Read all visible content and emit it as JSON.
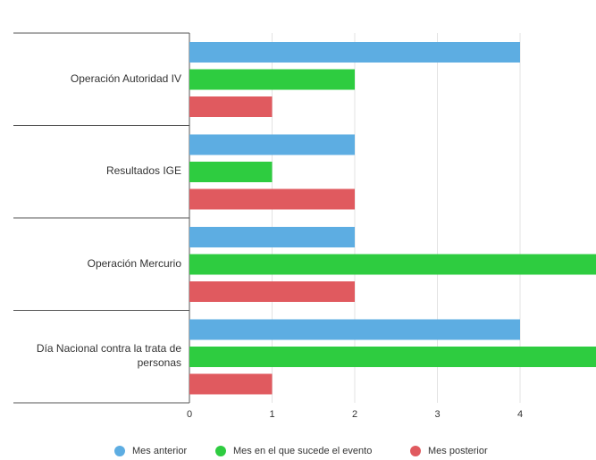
{
  "chart_data": {
    "type": "bar",
    "orientation": "horizontal",
    "categories": [
      "Operación Autoridad IV",
      "Resultados IGE",
      "Operación Mercurio",
      "Día Nacional contra la trata de personas"
    ],
    "series": [
      {
        "name": "Mes anterior",
        "color": "#5dade2",
        "values": [
          4,
          2,
          2,
          4
        ]
      },
      {
        "name": "Mes en el que sucede el evento",
        "color": "#2ecc40",
        "values": [
          2,
          1,
          5,
          5
        ]
      },
      {
        "name": "Mes posterior",
        "color": "#e05a5f",
        "values": [
          1,
          2,
          2,
          1
        ]
      }
    ],
    "xlim": [
      0,
      5
    ],
    "x_ticks": [
      "0",
      "1",
      "2",
      "3",
      "4",
      "5"
    ],
    "grid": true,
    "legend_position": "bottom"
  }
}
